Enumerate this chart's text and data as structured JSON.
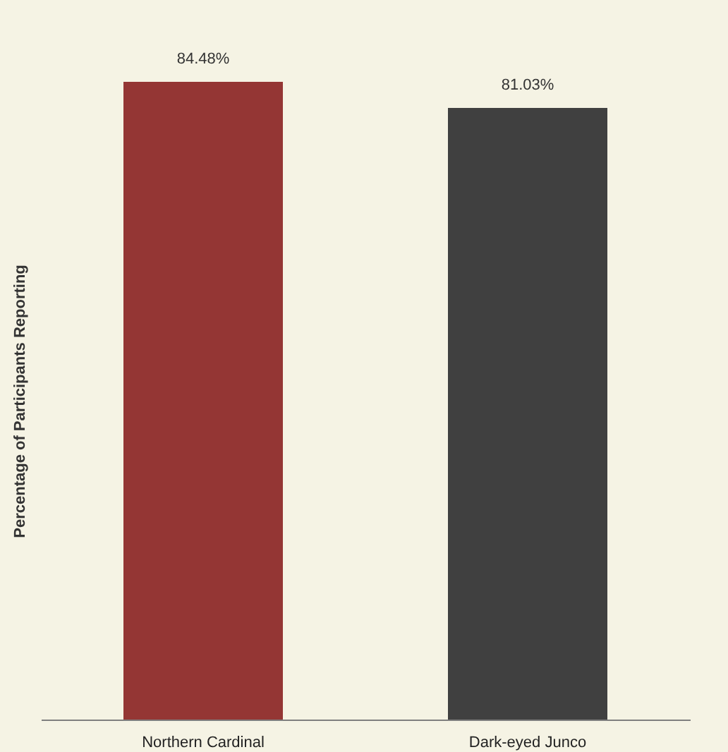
{
  "chart_data": {
    "type": "bar",
    "ylabel": "Percentage of Participants Reporting",
    "categories": [
      "Northern Cardinal",
      "Dark-eyed Junco"
    ],
    "values": [
      84.48,
      81.03
    ],
    "colors": [
      "#943634",
      "#404040"
    ],
    "value_labels": [
      "84.48%",
      "81.03%"
    ],
    "grid": false,
    "legend": false
  }
}
